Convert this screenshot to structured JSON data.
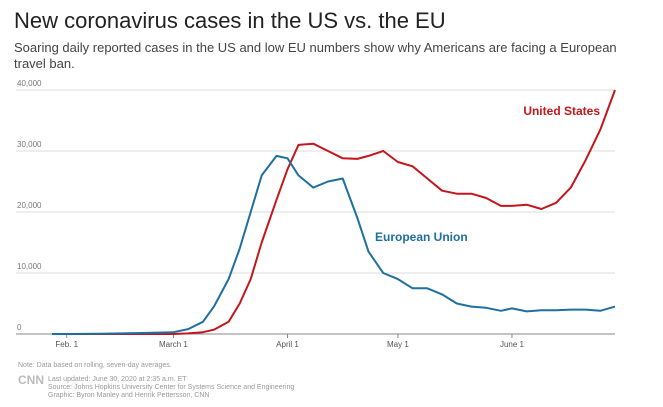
{
  "chart_data": {
    "type": "line",
    "title": "New coronavirus cases in the US vs. the EU",
    "subtitle": "Soaring daily reported cases in the US and low EU numbers show why Americans are facing a European travel ban.",
    "x": [
      "Jan. 28",
      "Feb. 1",
      "Feb. 10",
      "Feb. 20",
      "March 1",
      "March 5",
      "March 9",
      "March 12",
      "March 16",
      "March 19",
      "March 22",
      "March 25",
      "March 29",
      "April 1",
      "April 4",
      "April 8",
      "April 12",
      "April 16",
      "April 20",
      "April 23",
      "April 27",
      "May 1",
      "May 5",
      "May 9",
      "May 13",
      "May 17",
      "May 21",
      "May 25",
      "May 29",
      "June 1",
      "June 5",
      "June 9",
      "June 13",
      "June 17",
      "June 21",
      "June 25",
      "June 29"
    ],
    "series": [
      {
        "name": "United States",
        "color": "#c4161c",
        "values": [
          0,
          0,
          0,
          0,
          0,
          100,
          300,
          700,
          2000,
          5000,
          9000,
          15000,
          22000,
          27000,
          31000,
          31200,
          30000,
          28800,
          28700,
          29200,
          30000,
          28200,
          27500,
          25500,
          23500,
          23000,
          23000,
          22300,
          21000,
          21000,
          21200,
          20500,
          21500,
          24000,
          28500,
          33500,
          40000
        ]
      },
      {
        "name": "European Union",
        "color": "#1f6f9f",
        "values": [
          0,
          0,
          50,
          150,
          300,
          800,
          2000,
          4500,
          9000,
          14000,
          20000,
          26000,
          29200,
          28800,
          26000,
          24000,
          25000,
          25500,
          19000,
          13500,
          10000,
          9000,
          7500,
          7500,
          6500,
          5000,
          4500,
          4300,
          3800,
          4200,
          3700,
          3900,
          3900,
          4000,
          4000,
          3800,
          4500
        ]
      }
    ],
    "xlim": [
      "Jan. 28",
      "June 29"
    ],
    "xticks": [
      "Feb. 1",
      "March 1",
      "April 1",
      "May 1",
      "June 1"
    ],
    "ylim": [
      0,
      40000
    ],
    "yticks": [
      0,
      {
        "value": 10000,
        "label": "10,000"
      },
      {
        "value": 20000,
        "label": "20,000"
      },
      {
        "value": 30000,
        "label": "30,000"
      },
      {
        "value": 40000,
        "label": "40,000"
      }
    ],
    "grid": true,
    "note": "Note: Data based on rolling, seven-day averages.",
    "footer": [
      "Last updated: June 30, 2020 at 2:35 a.m. ET",
      "Source: Johns Hopkins University Center for Systems Science and Engineering",
      "Graphic: Byron Manley and Henrik Pettersson, CNN"
    ],
    "logo": "CNN"
  }
}
